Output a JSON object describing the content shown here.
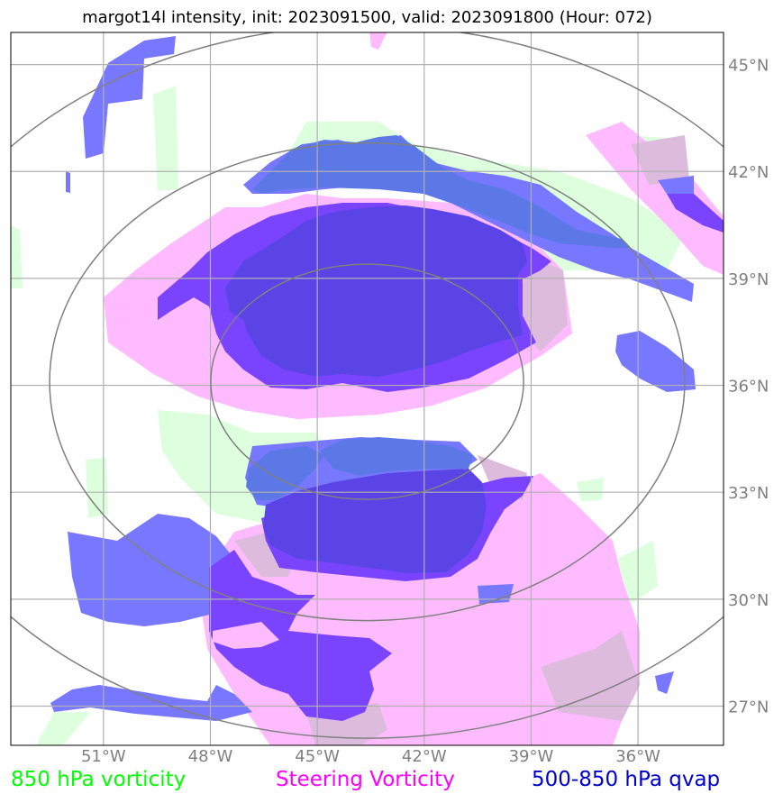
{
  "title": "margot14l intensity, init: 2023091500, valid: 2023091800 (Hour: 072)",
  "map": {
    "lon_labels": [
      "51°W",
      "48°W",
      "45°W",
      "42°W",
      "39°W",
      "36°W"
    ],
    "lat_labels": [
      "45°N",
      "42°N",
      "39°N",
      "36°N",
      "33°N",
      "30°N",
      "27°N"
    ],
    "lon_values": [
      -51,
      -48,
      -45,
      -42,
      -39,
      -36
    ],
    "lat_values": [
      45,
      42,
      39,
      36,
      33,
      30,
      27
    ],
    "lon_range": [
      -53.6,
      -33.6
    ],
    "lat_range": [
      25.9,
      45.9
    ],
    "storm_center": {
      "lon": -43.6,
      "lat": 36.1
    },
    "range_rings_deg": [
      3.3,
      6.7,
      10.0
    ]
  },
  "legend": {
    "vort850": {
      "label": "850 hPa vorticity",
      "color": "#00ff00"
    },
    "steering": {
      "label": "Steering Vorticity",
      "color": "#ff00ff"
    },
    "qvap": {
      "label": "500-850 hPa qvap",
      "color": "#0000cc"
    }
  },
  "colors": {
    "vort850_fill": "#ddffdd",
    "steering_fill": "#ffbbff",
    "qvap_fill": "#7777ff",
    "qvap_dark_fill": "#7a44ff",
    "overlap_fill": "#5a44e6",
    "grid": "#b0b0b0",
    "rings": "#808080"
  }
}
